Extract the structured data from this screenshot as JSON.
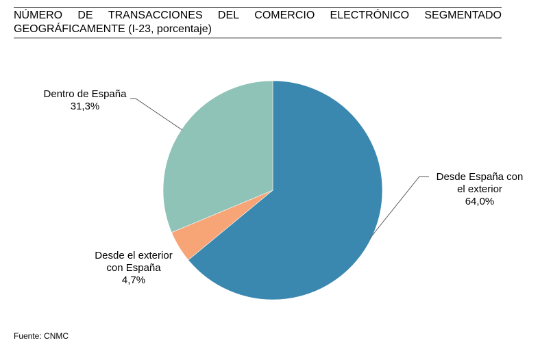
{
  "title_words": [
    "NÚMERO",
    "DE",
    "TRANSACCIONES",
    "DEL",
    "COMERCIO",
    "ELECTRÓNICO",
    "SEGMENTADO"
  ],
  "title_line2": "GEOGRÁFICAMENTE (I-23, porcentaje)",
  "source": "Fuente: CNMC",
  "chart_data": {
    "type": "pie",
    "title": "NÚMERO DE TRANSACCIONES DEL COMERCIO ELECTRÓNICO SEGMENTADO GEOGRÁFICAMENTE (I-23, porcentaje)",
    "start_angle_deg": 0,
    "direction": "clockwise",
    "slices": [
      {
        "label_lines": [
          "Desde España con",
          "el exterior"
        ],
        "value": 64.0,
        "value_label": "64,0%",
        "color": "#3a88b0"
      },
      {
        "label_lines": [
          "Desde el exterior",
          "con España"
        ],
        "value": 4.7,
        "value_label": "4,7%",
        "color": "#f7a577"
      },
      {
        "label_lines": [
          "Dentro de España"
        ],
        "value": 31.3,
        "value_label": "31,3%",
        "color": "#90c3b7"
      }
    ],
    "legend": "none"
  }
}
